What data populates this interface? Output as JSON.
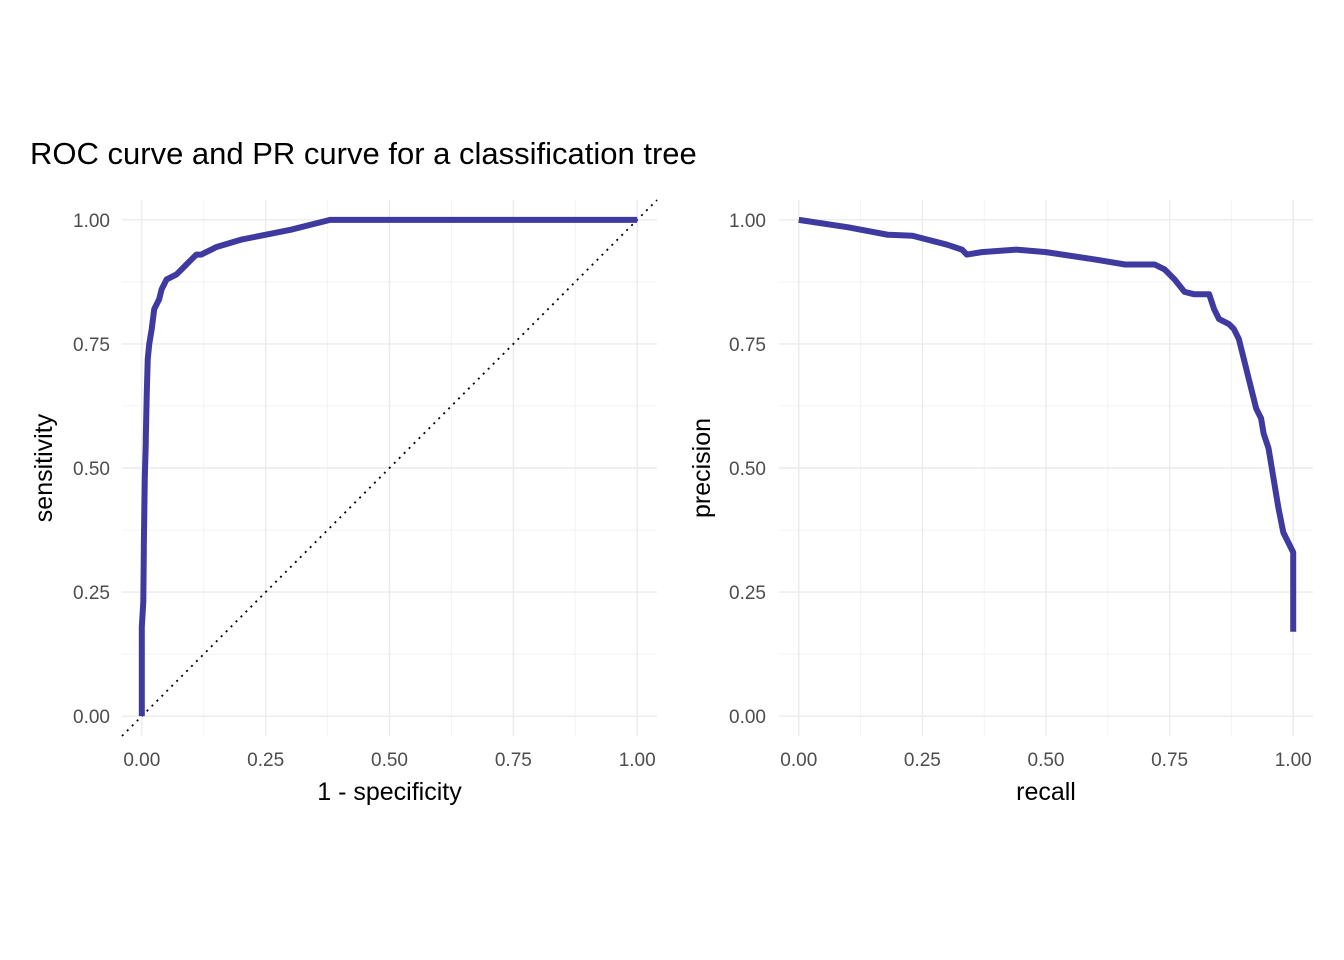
{
  "figure": {
    "title": "ROC curve and PR curve for a classification tree",
    "line_color": "#3f3aa0"
  },
  "chart_data": [
    {
      "type": "line",
      "title": "",
      "xlabel": "1 - specificity",
      "ylabel": "sensitivity",
      "xlim": [
        -0.04,
        1.04
      ],
      "ylim": [
        -0.04,
        1.04
      ],
      "xticks": [
        "0.00",
        "0.25",
        "0.50",
        "0.75",
        "1.00"
      ],
      "yticks": [
        "0.00",
        "0.25",
        "0.50",
        "0.75",
        "1.00"
      ],
      "grid": true,
      "reference_line": "diagonal dotted",
      "series": [
        {
          "x": [
            0.0,
            0.0,
            0.003,
            0.004,
            0.004,
            0.006,
            0.008,
            0.008,
            0.01,
            0.012,
            0.015,
            0.02,
            0.025,
            0.03,
            0.035,
            0.04,
            0.045,
            0.05,
            0.06,
            0.07,
            0.08,
            0.09,
            0.1,
            0.11,
            0.12,
            0.13,
            0.14,
            0.15,
            0.2,
            0.3,
            0.38,
            0.5,
            0.7,
            0.88,
            1.0
          ],
          "y": [
            0.0,
            0.18,
            0.23,
            0.33,
            0.34,
            0.48,
            0.55,
            0.56,
            0.65,
            0.72,
            0.75,
            0.78,
            0.82,
            0.83,
            0.84,
            0.86,
            0.87,
            0.88,
            0.885,
            0.89,
            0.9,
            0.91,
            0.92,
            0.93,
            0.93,
            0.935,
            0.94,
            0.945,
            0.96,
            0.98,
            1.0,
            1.0,
            1.0,
            1.0,
            1.0
          ]
        }
      ]
    },
    {
      "type": "line",
      "title": "",
      "xlabel": "recall",
      "ylabel": "precision",
      "xlim": [
        -0.04,
        1.04
      ],
      "ylim": [
        -0.04,
        1.04
      ],
      "xticks": [
        "0.00",
        "0.25",
        "0.50",
        "0.75",
        "1.00"
      ],
      "yticks": [
        "0.00",
        "0.25",
        "0.50",
        "0.75",
        "1.00"
      ],
      "grid": true,
      "series": [
        {
          "x": [
            0.0,
            0.1,
            0.18,
            0.23,
            0.3,
            0.33,
            0.34,
            0.37,
            0.44,
            0.5,
            0.6,
            0.66,
            0.7,
            0.72,
            0.74,
            0.76,
            0.78,
            0.8,
            0.83,
            0.84,
            0.85,
            0.87,
            0.88,
            0.89,
            0.9,
            0.91,
            0.92,
            0.925,
            0.93,
            0.935,
            0.94,
            0.95,
            0.96,
            0.97,
            0.98,
            1.0,
            1.0
          ],
          "y": [
            1.0,
            0.985,
            0.97,
            0.968,
            0.95,
            0.94,
            0.93,
            0.935,
            0.94,
            0.935,
            0.92,
            0.91,
            0.91,
            0.91,
            0.9,
            0.88,
            0.855,
            0.85,
            0.85,
            0.82,
            0.8,
            0.79,
            0.78,
            0.76,
            0.72,
            0.68,
            0.64,
            0.62,
            0.61,
            0.6,
            0.57,
            0.54,
            0.48,
            0.42,
            0.37,
            0.33,
            0.17
          ]
        }
      ]
    }
  ]
}
